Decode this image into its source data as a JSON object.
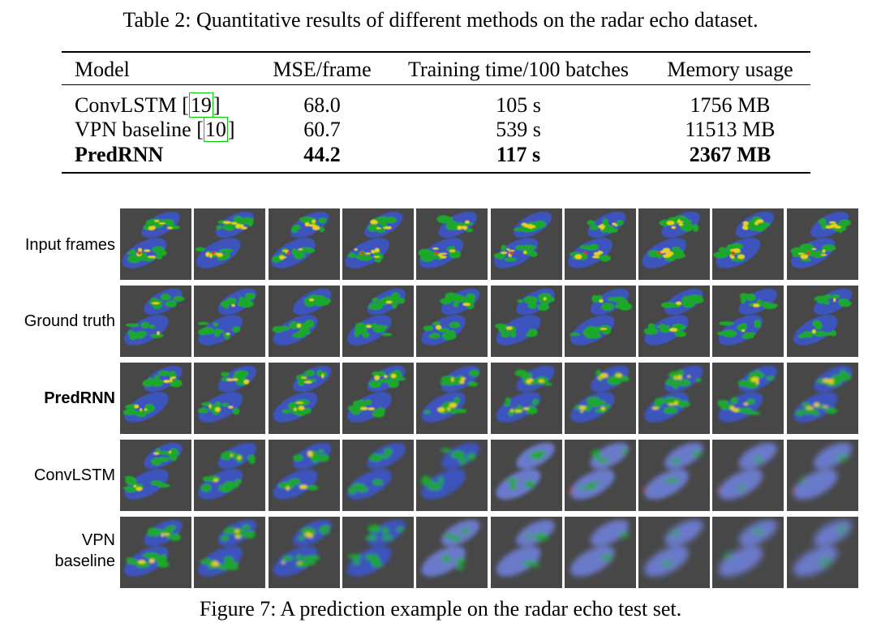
{
  "table": {
    "caption": "Table 2: Quantitative results of different methods on the radar echo dataset.",
    "headers": [
      "Model",
      "MSE/frame",
      "Training time/100 batches",
      "Memory usage"
    ],
    "rows": [
      {
        "model": "ConvLSTM",
        "cite": "19",
        "mse": "68.0",
        "time": "105 s",
        "memory": "1756 MB",
        "bold": false
      },
      {
        "model": "VPN baseline",
        "cite": "10",
        "mse": "60.7",
        "time": "539 s",
        "memory": "11513 MB",
        "bold": false
      },
      {
        "model": "PredRNN",
        "cite": "",
        "mse": "44.2",
        "time": "117 s",
        "memory": "2367 MB",
        "bold": true
      }
    ]
  },
  "figure": {
    "caption": "Figure 7: A prediction example on the radar echo test set.",
    "rows": [
      {
        "label": "Input frames",
        "style": "input",
        "bold": false
      },
      {
        "label": "Ground truth",
        "style": "truth",
        "bold": false
      },
      {
        "label": "PredRNN",
        "style": "predrnn",
        "bold": true
      },
      {
        "label": "ConvLSTM",
        "style": "convlstm",
        "bold": false
      },
      {
        "label": "VPN\nbaseline",
        "style": "vpn",
        "bold": false
      }
    ],
    "frames_per_row": 10
  },
  "colors": {
    "background": "#474747",
    "echo_low": "#3a55c8",
    "echo_mid": "#1fa82a",
    "echo_high": "#e6d21a",
    "echo_peak": "#d8391e",
    "cite_box": "#00d000"
  }
}
